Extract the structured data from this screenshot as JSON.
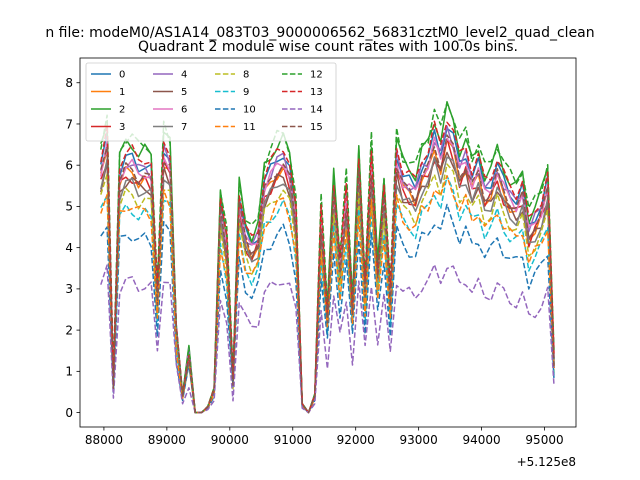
{
  "chart_data": {
    "type": "line",
    "suptitle": "n file: modeM0/AS1A14_083T03_9000006562_56831cztM0_level2_quad_clean",
    "title": "Quadrant 2 module wise count rates with 100.0s bins.",
    "xlabel": "",
    "ylabel": "",
    "x_offset_label": "+5.125e8",
    "xlim": [
      87620,
      95500
    ],
    "ylim": [
      -0.35,
      8.6
    ],
    "x_ticks": [
      88000,
      89000,
      90000,
      91000,
      92000,
      93000,
      94000,
      95000
    ],
    "x_tick_labels": [
      "88000",
      "89000",
      "90000",
      "91000",
      "92000",
      "93000",
      "94000",
      "95000"
    ],
    "y_ticks": [
      0,
      1,
      2,
      3,
      4,
      5,
      6,
      7,
      8
    ],
    "y_tick_labels": [
      "0",
      "1",
      "2",
      "3",
      "4",
      "5",
      "6",
      "7",
      "8"
    ],
    "grid": false,
    "legend_placement": "top-left",
    "x": [
      87950,
      88050,
      88150,
      88250,
      88350,
      88450,
      88550,
      88650,
      88750,
      88850,
      88950,
      89050,
      89150,
      89250,
      89350,
      89450,
      89550,
      89650,
      89750,
      89850,
      89950,
      90050,
      90150,
      90250,
      90350,
      90450,
      90550,
      90650,
      90750,
      90850,
      90950,
      91050,
      91150,
      91250,
      91350,
      91450,
      91550,
      91650,
      91750,
      91850,
      91950,
      92050,
      92150,
      92250,
      92350,
      92450,
      92550,
      92650,
      92750,
      92850,
      92950,
      93050,
      93150,
      93250,
      93350,
      93450,
      93550,
      93650,
      93750,
      93850,
      93950,
      94050,
      94150,
      94250,
      94350,
      94450,
      94550,
      94650,
      94750,
      94850,
      94950,
      95050,
      95150
    ],
    "base_profile": [
      0.86,
      0.95,
      0.11,
      0.84,
      0.88,
      0.88,
      0.85,
      0.86,
      0.84,
      0.4,
      0.92,
      0.88,
      0.28,
      0.06,
      0.21,
      0.0,
      0.0,
      0.02,
      0.08,
      0.72,
      0.58,
      0.12,
      0.75,
      0.62,
      0.58,
      0.62,
      0.8,
      0.84,
      0.88,
      0.9,
      0.84,
      0.68,
      0.03,
      0.0,
      0.06,
      0.68,
      0.34,
      0.78,
      0.5,
      0.76,
      0.36,
      0.86,
      0.42,
      0.88,
      0.48,
      0.76,
      0.4,
      0.9,
      0.82,
      0.8,
      0.78,
      0.86,
      0.88,
      0.96,
      0.9,
      1.0,
      0.95,
      0.86,
      0.9,
      0.82,
      0.86,
      0.78,
      0.8,
      0.86,
      0.8,
      0.76,
      0.74,
      0.78,
      0.64,
      0.68,
      0.72,
      0.8,
      0.18
    ],
    "series": [
      {
        "name": "0",
        "color": "#1f77b4",
        "dash": "solid",
        "level": 7.0
      },
      {
        "name": "1",
        "color": "#ff7f0e",
        "dash": "solid",
        "level": 6.6
      },
      {
        "name": "2",
        "color": "#2ca02c",
        "dash": "solid",
        "level": 7.4
      },
      {
        "name": "3",
        "color": "#d62728",
        "dash": "solid",
        "level": 6.5
      },
      {
        "name": "4",
        "color": "#9467bd",
        "dash": "solid",
        "level": 6.9
      },
      {
        "name": "5",
        "color": "#8c564b",
        "dash": "solid",
        "level": 6.4
      },
      {
        "name": "6",
        "color": "#e377c2",
        "dash": "solid",
        "level": 6.8
      },
      {
        "name": "7",
        "color": "#7f7f7f",
        "dash": "solid",
        "level": 6.3
      },
      {
        "name": "8",
        "color": "#bcbd22",
        "dash": "dashed",
        "level": 6.0
      },
      {
        "name": "9",
        "color": "#17becf",
        "dash": "dashed",
        "level": 5.6
      },
      {
        "name": "10",
        "color": "#1f77b4",
        "dash": "dashed",
        "level": 4.9
      },
      {
        "name": "11",
        "color": "#ff7f0e",
        "dash": "dashed",
        "level": 5.7
      },
      {
        "name": "12",
        "color": "#2ca02c",
        "dash": "dashed",
        "level": 7.6
      },
      {
        "name": "13",
        "color": "#d62728",
        "dash": "dashed",
        "level": 7.2
      },
      {
        "name": "14",
        "color": "#9467bd",
        "dash": "dashed",
        "level": 3.6
      },
      {
        "name": "15",
        "color": "#8c564b",
        "dash": "dashed",
        "level": 6.7
      }
    ]
  }
}
